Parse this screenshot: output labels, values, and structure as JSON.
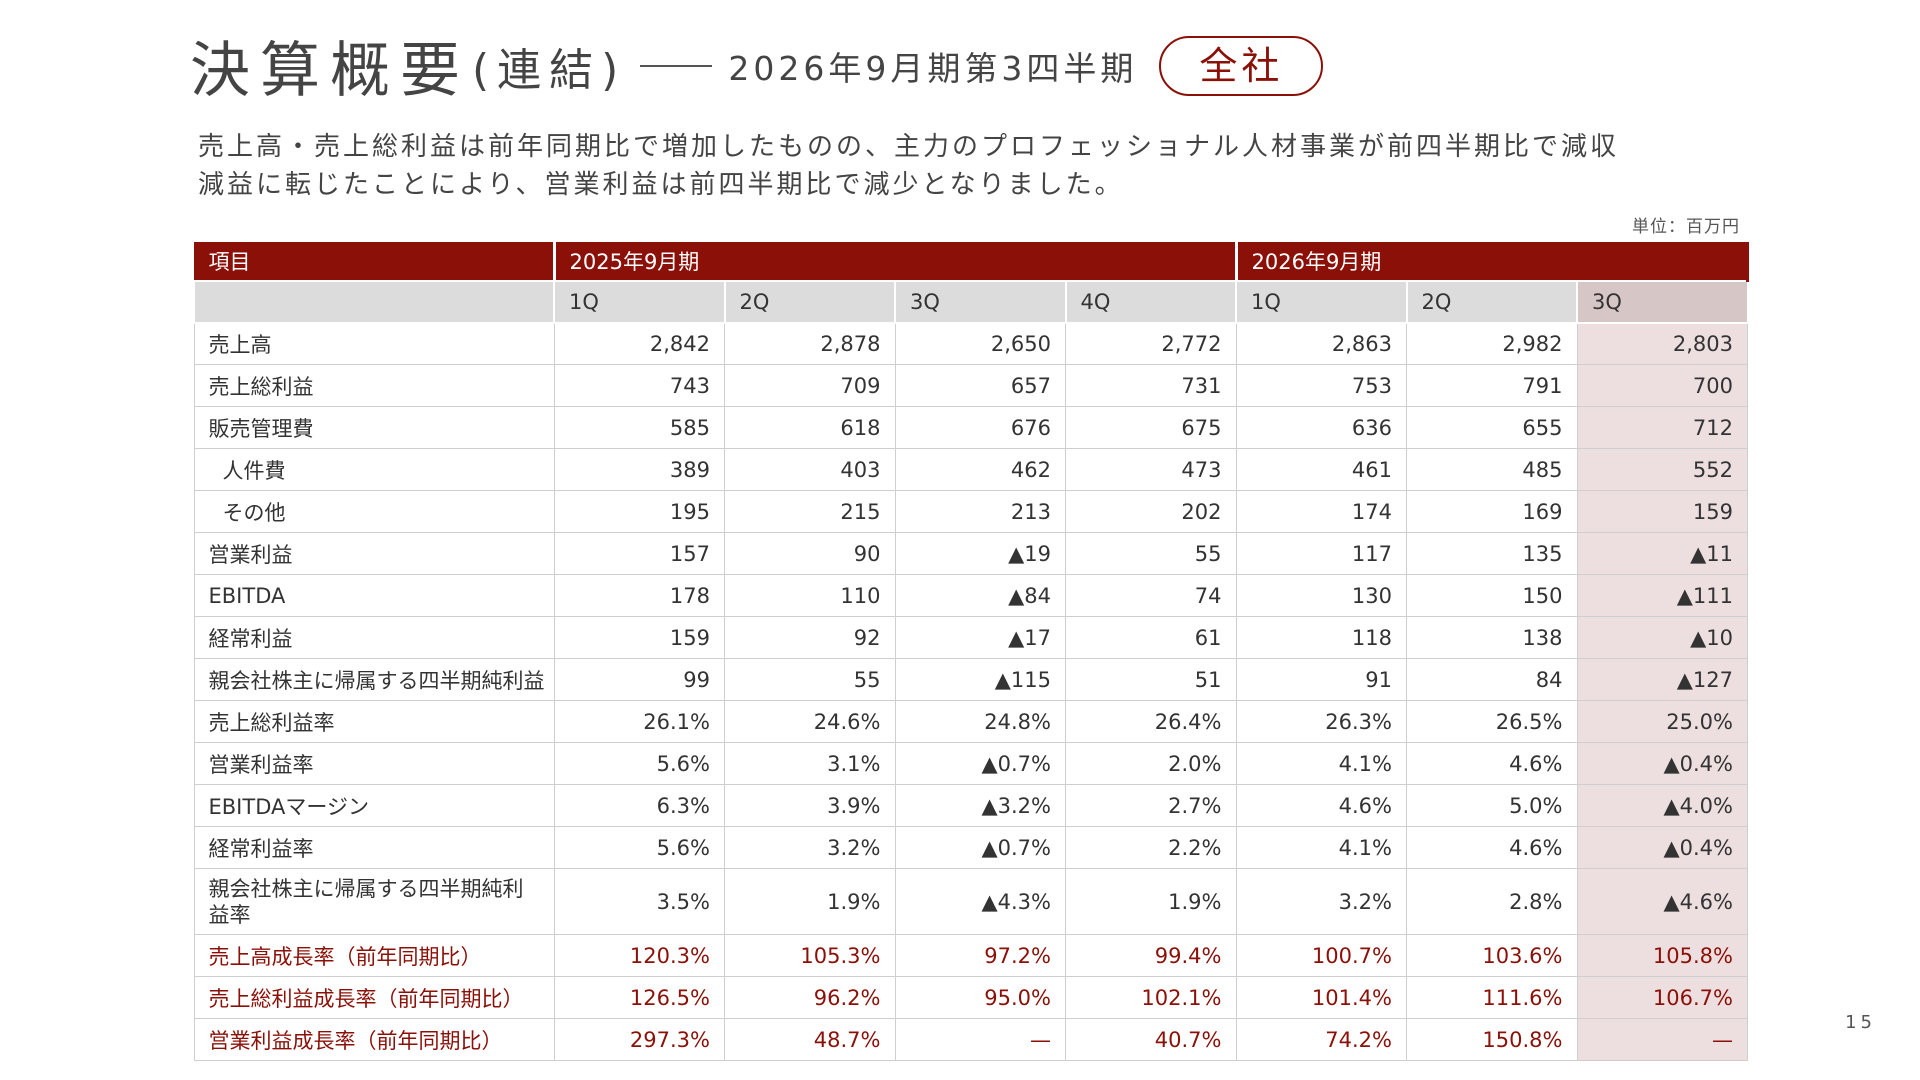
{
  "title": {
    "main": "決算概要",
    "paren": "(連結)",
    "period": "2026年9月期第3四半期",
    "badge": "全社"
  },
  "summary": "売上高・売上総利益は前年同期比で増加したものの、主力のプロフェッショナル人材事業が前四半期比で減収\n減益に転じたことにより、営業利益は前四半期比で減少となりました。",
  "unit": "単位：百万円",
  "table": {
    "header_item": "項目",
    "year1": "2025年9月期",
    "year2": "2026年9月期",
    "quarters": [
      "1Q",
      "2Q",
      "3Q",
      "4Q",
      "1Q",
      "2Q",
      "3Q"
    ],
    "rows": [
      {
        "label": "売上高",
        "values": [
          "2,842",
          "2,878",
          "2,650",
          "2,772",
          "2,863",
          "2,982",
          "2,803"
        ]
      },
      {
        "label": "売上総利益",
        "values": [
          "743",
          "709",
          "657",
          "731",
          "753",
          "791",
          "700"
        ]
      },
      {
        "label": "販売管理費",
        "values": [
          "585",
          "618",
          "676",
          "675",
          "636",
          "655",
          "712"
        ]
      },
      {
        "label": "人件費",
        "values": [
          "389",
          "403",
          "462",
          "473",
          "461",
          "485",
          "552"
        ]
      },
      {
        "label": "その他",
        "values": [
          "195",
          "215",
          "213",
          "202",
          "174",
          "169",
          "159"
        ]
      },
      {
        "label": "営業利益",
        "values": [
          "157",
          "90",
          "▲19",
          "55",
          "117",
          "135",
          "▲11"
        ]
      },
      {
        "label": "EBITDA",
        "values": [
          "178",
          "110",
          "▲84",
          "74",
          "130",
          "150",
          "▲111"
        ]
      },
      {
        "label": "経常利益",
        "values": [
          "159",
          "92",
          "▲17",
          "61",
          "118",
          "138",
          "▲10"
        ]
      },
      {
        "label": "親会社株主に帰属する四半期純利益",
        "values": [
          "99",
          "55",
          "▲115",
          "51",
          "91",
          "84",
          "▲127"
        ]
      },
      {
        "label": "売上総利益率",
        "values": [
          "26.1%",
          "24.6%",
          "24.8%",
          "26.4%",
          "26.3%",
          "26.5%",
          "25.0%"
        ]
      },
      {
        "label": "営業利益率",
        "values": [
          "5.6%",
          "3.1%",
          "▲0.7%",
          "2.0%",
          "4.1%",
          "4.6%",
          "▲0.4%"
        ]
      },
      {
        "label": "EBITDAマージン",
        "values": [
          "6.3%",
          "3.9%",
          "▲3.2%",
          "2.7%",
          "4.6%",
          "5.0%",
          "▲4.0%"
        ]
      },
      {
        "label": "経常利益率",
        "values": [
          "5.6%",
          "3.2%",
          "▲0.7%",
          "2.2%",
          "4.1%",
          "4.6%",
          "▲0.4%"
        ]
      },
      {
        "label": "親会社株主に帰属する四半期純利益率",
        "values": [
          "3.5%",
          "1.9%",
          "▲4.3%",
          "1.9%",
          "3.2%",
          "2.8%",
          "▲4.6%"
        ]
      },
      {
        "label": "売上高成長率（前年同期比）",
        "values": [
          "120.3%",
          "105.3%",
          "97.2%",
          "99.4%",
          "100.7%",
          "103.6%",
          "105.8%"
        ]
      },
      {
        "label": "売上総利益成長率（前年同期比）",
        "values": [
          "126.5%",
          "96.2%",
          "95.0%",
          "102.1%",
          "101.4%",
          "111.6%",
          "106.7%"
        ]
      },
      {
        "label": "営業利益成長率（前年同期比）",
        "values": [
          "297.3%",
          "48.7%",
          "—",
          "40.7%",
          "74.2%",
          "150.8%",
          "—"
        ]
      }
    ]
  },
  "page_number": "15",
  "colors": {
    "accent": "#8b1008",
    "highlight_column": "#eddfdf"
  }
}
